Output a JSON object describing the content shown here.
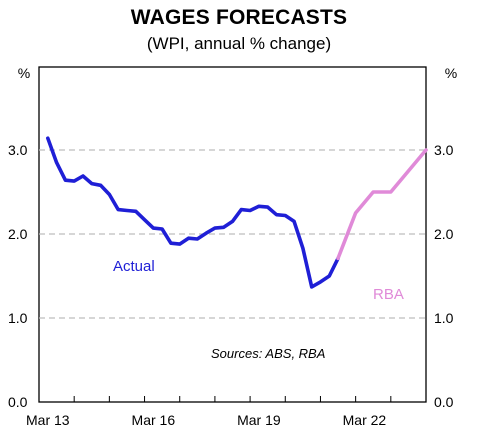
{
  "chart_data": {
    "type": "line",
    "title": "WAGES FORECASTS",
    "subtitle": "(WPI, annual % change)",
    "ylabel_left": "%",
    "ylabel_right": "%",
    "ylim": [
      0,
      3.0
    ],
    "yticks": [
      "0.0",
      "1.0",
      "2.0",
      "3.0"
    ],
    "xticks": [
      "Mar 13",
      "Mar 16",
      "Mar 19",
      "Mar 22"
    ],
    "grid": "horizontal dashed",
    "source": "Sources: ABS, RBA",
    "series": [
      {
        "name": "Actual",
        "color": "#1f1fd6",
        "x": [
          "2013-03",
          "2013-06",
          "2013-09",
          "2013-12",
          "2014-03",
          "2014-06",
          "2014-09",
          "2014-12",
          "2015-03",
          "2015-06",
          "2015-09",
          "2015-12",
          "2016-03",
          "2016-06",
          "2016-09",
          "2016-12",
          "2017-03",
          "2017-06",
          "2017-09",
          "2017-12",
          "2018-03",
          "2018-06",
          "2018-09",
          "2018-12",
          "2019-03",
          "2019-06",
          "2019-09",
          "2019-12",
          "2020-03",
          "2020-06",
          "2020-09",
          "2020-12",
          "2021-03",
          "2021-06"
        ],
        "y": [
          3.14,
          2.85,
          2.64,
          2.63,
          2.69,
          2.6,
          2.58,
          2.47,
          2.29,
          2.28,
          2.27,
          2.17,
          2.07,
          2.06,
          1.89,
          1.88,
          1.95,
          1.94,
          2.01,
          2.07,
          2.08,
          2.15,
          2.29,
          2.28,
          2.33,
          2.32,
          2.23,
          2.22,
          2.15,
          1.83,
          1.37,
          1.43,
          1.5,
          1.71
        ]
      },
      {
        "name": "RBA",
        "color": "#e08ad8",
        "x": [
          "2021-06",
          "2021-12",
          "2022-06",
          "2022-12",
          "2023-06",
          "2023-12"
        ],
        "y": [
          1.71,
          2.25,
          2.5,
          2.5,
          2.75,
          3.0
        ]
      }
    ]
  }
}
